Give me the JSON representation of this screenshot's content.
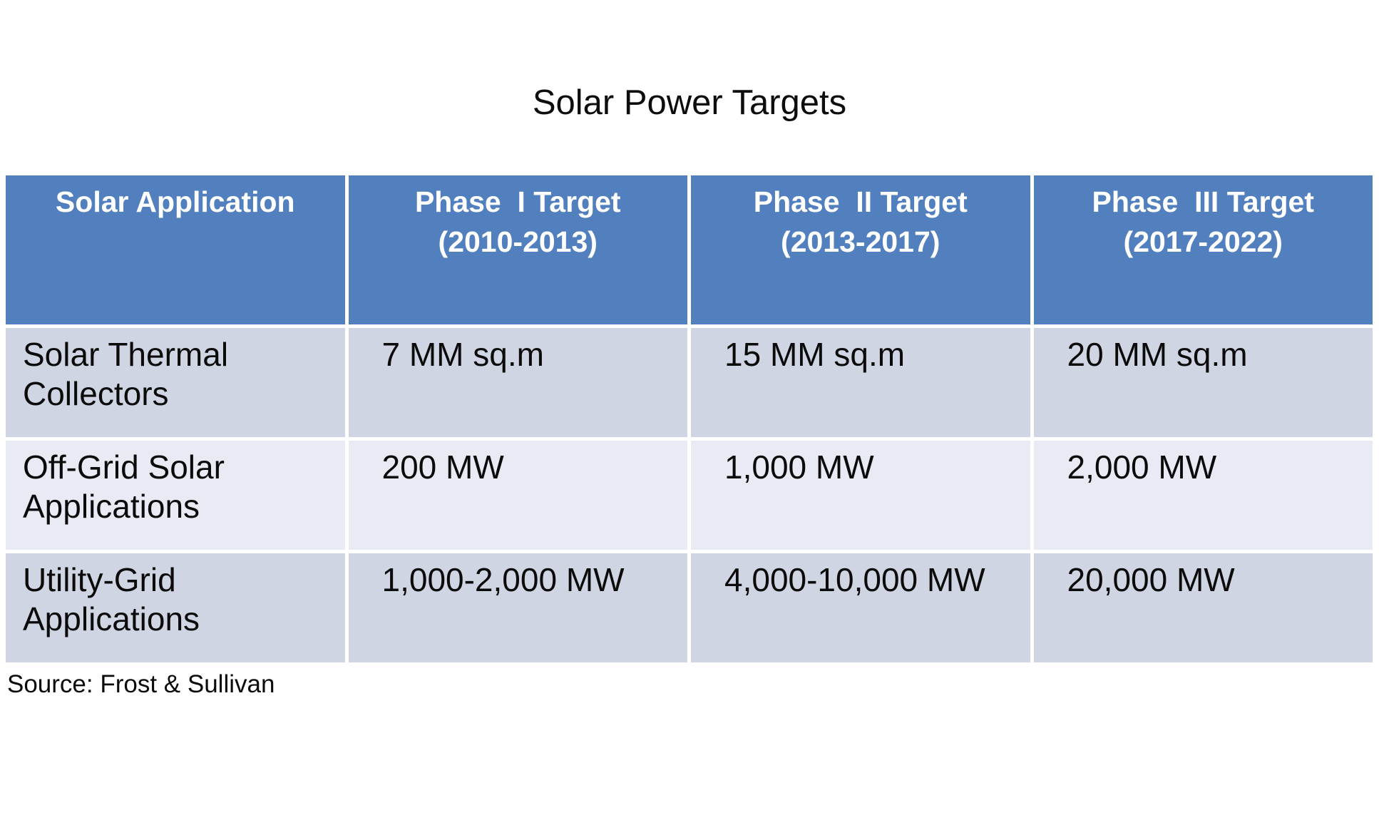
{
  "title": "Solar Power Targets",
  "source_note": "Source: Frost & Sullivan",
  "colors": {
    "header_bg": "#5280be",
    "row_odd_bg": "#d0d5e3",
    "row_even_bg": "#e9ebf4",
    "header_text": "#ffffff",
    "body_text": "#0b0b0b"
  },
  "table": {
    "headers": [
      "Solar Application",
      "Phase  I Target\n(2010-2013)",
      "Phase  II Target\n(2013-2017)",
      "Phase  III Target\n(2017-2022)"
    ],
    "rows": [
      {
        "label": "Solar Thermal\nCollectors",
        "cells": [
          "7 MM sq.m",
          "15 MM sq.m",
          "20 MM sq.m"
        ]
      },
      {
        "label": "Off-Grid Solar\nApplications",
        "cells": [
          "200 MW",
          "1,000 MW",
          "2,000 MW"
        ]
      },
      {
        "label": "Utility-Grid\nApplications",
        "cells": [
          "1,000-2,000 MW",
          "4,000-10,000 MW",
          "20,000 MW"
        ]
      }
    ]
  },
  "chart_data": {
    "type": "table",
    "title": "Solar Power Targets",
    "columns": [
      "Solar Application",
      "Phase I Target (2010-2013)",
      "Phase II Target (2013-2017)",
      "Phase III Target (2017-2022)"
    ],
    "rows": [
      [
        "Solar Thermal Collectors",
        "7 MM sq.m",
        "15 MM sq.m",
        "20 MM sq.m"
      ],
      [
        "Off-Grid Solar Applications",
        "200 MW",
        "1,000 MW",
        "2,000 MW"
      ],
      [
        "Utility-Grid Applications",
        "1,000-2,000 MW",
        "4,000-10,000 MW",
        "20,000 MW"
      ]
    ],
    "source": "Frost & Sullivan"
  }
}
